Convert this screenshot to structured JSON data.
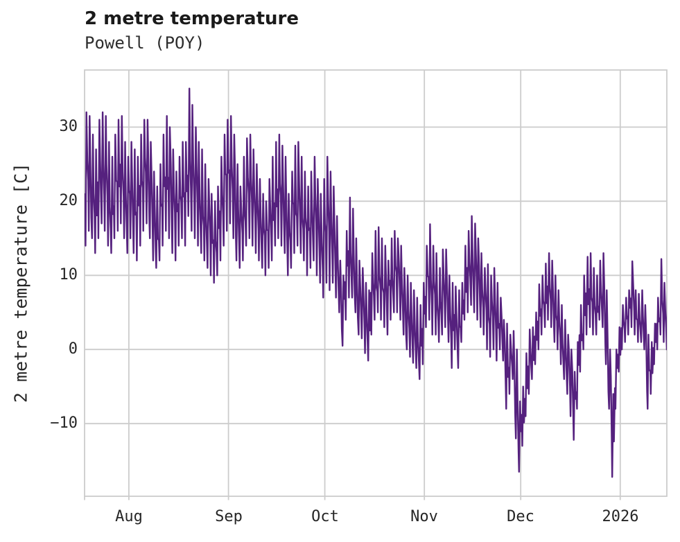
{
  "chart_data": {
    "type": "line",
    "title": "2 metre temperature",
    "subtitle": "Powell (POY)",
    "ylabel": "2 metre temperature [C]",
    "legend": "none",
    "grid": "on",
    "line_color": "#55217E",
    "grid_color": "#cccccc",
    "ylim": [
      -19.8,
      37.7
    ],
    "x_span_days": 181.3,
    "y_ticks": [
      {
        "label": "30",
        "value": 30
      },
      {
        "label": "20",
        "value": 20
      },
      {
        "label": "10",
        "value": 10
      },
      {
        "label": "0",
        "value": 0
      },
      {
        "label": "−10",
        "value": -10
      }
    ],
    "x_ticks": [
      {
        "label": "Aug",
        "day": 13.8
      },
      {
        "label": "Sep",
        "day": 44.8
      },
      {
        "label": "Oct",
        "day": 74.8
      },
      {
        "label": "Nov",
        "day": 105.8
      },
      {
        "label": "Dec",
        "day": 135.8
      },
      {
        "label": "2026",
        "day": 166.8
      }
    ],
    "daily_min_max_celsius": [
      [
        14,
        32
      ],
      [
        16,
        31.5
      ],
      [
        15,
        29
      ],
      [
        13,
        27
      ],
      [
        15,
        31
      ],
      [
        17,
        32
      ],
      [
        16,
        31.5
      ],
      [
        14,
        28
      ],
      [
        13,
        26
      ],
      [
        15,
        29
      ],
      [
        16,
        31
      ],
      [
        17,
        31.5
      ],
      [
        15,
        28
      ],
      [
        13,
        26
      ],
      [
        15,
        28
      ],
      [
        13,
        27
      ],
      [
        12,
        26
      ],
      [
        14,
        29
      ],
      [
        16,
        31
      ],
      [
        17,
        31
      ],
      [
        15,
        28
      ],
      [
        12,
        24
      ],
      [
        11,
        22
      ],
      [
        12,
        25
      ],
      [
        14,
        29
      ],
      [
        16,
        31.5
      ],
      [
        15,
        30
      ],
      [
        13,
        27
      ],
      [
        12,
        24
      ],
      [
        14,
        26
      ],
      [
        15,
        28
      ],
      [
        14,
        28
      ],
      [
        18,
        35.2
      ],
      [
        16,
        33
      ],
      [
        15,
        30
      ],
      [
        14,
        28
      ],
      [
        13,
        27
      ],
      [
        12,
        25
      ],
      [
        11,
        23
      ],
      [
        10,
        21
      ],
      [
        9,
        20
      ],
      [
        10,
        22
      ],
      [
        12,
        26
      ],
      [
        14,
        29
      ],
      [
        16,
        31
      ],
      [
        17,
        31.5
      ],
      [
        15,
        29
      ],
      [
        12,
        25
      ],
      [
        11,
        22
      ],
      [
        12,
        26
      ],
      [
        14,
        28.5
      ],
      [
        15,
        29
      ],
      [
        14,
        27
      ],
      [
        13,
        25
      ],
      [
        12,
        23
      ],
      [
        11,
        21
      ],
      [
        10,
        20
      ],
      [
        11,
        23
      ],
      [
        12,
        26
      ],
      [
        14,
        28
      ],
      [
        15,
        29
      ],
      [
        14,
        27.5
      ],
      [
        13,
        26
      ],
      [
        10,
        21
      ],
      [
        11,
        24
      ],
      [
        13,
        27.5
      ],
      [
        14,
        28
      ],
      [
        13,
        26
      ],
      [
        12,
        24
      ],
      [
        10,
        22
      ],
      [
        11,
        24
      ],
      [
        12,
        26
      ],
      [
        10,
        23
      ],
      [
        9,
        21
      ],
      [
        7,
        23
      ],
      [
        9,
        26
      ],
      [
        8,
        24
      ],
      [
        9,
        22
      ],
      [
        7,
        18
      ],
      [
        5,
        12
      ],
      [
        0.5,
        10
      ],
      [
        4,
        16
      ],
      [
        7,
        20.5
      ],
      [
        7,
        19
      ],
      [
        5,
        15
      ],
      [
        2,
        12
      ],
      [
        1.5,
        11
      ],
      [
        -0.5,
        9
      ],
      [
        -1.5,
        8
      ],
      [
        2,
        13
      ],
      [
        4,
        16
      ],
      [
        5,
        16.5
      ],
      [
        4,
        15
      ],
      [
        3,
        14
      ],
      [
        2,
        12
      ],
      [
        4,
        15
      ],
      [
        5,
        16
      ],
      [
        5,
        15
      ],
      [
        4,
        14
      ],
      [
        2,
        11
      ],
      [
        0,
        10
      ],
      [
        -1,
        9
      ],
      [
        -1.8,
        8
      ],
      [
        -2.5,
        7
      ],
      [
        -4,
        6
      ],
      [
        -2,
        9
      ],
      [
        3,
        14
      ],
      [
        4,
        16.9
      ],
      [
        2,
        14
      ],
      [
        2,
        13
      ],
      [
        1,
        11
      ],
      [
        2,
        13.5
      ],
      [
        3,
        13.5
      ],
      [
        1,
        10
      ],
      [
        -2.5,
        9
      ],
      [
        0,
        8.5
      ],
      [
        -2.5,
        8
      ],
      [
        1,
        9
      ],
      [
        4,
        14
      ],
      [
        5,
        16
      ],
      [
        6,
        18
      ],
      [
        5,
        17
      ],
      [
        4,
        15
      ],
      [
        3,
        13
      ],
      [
        2,
        11
      ],
      [
        0,
        11.5
      ],
      [
        -1,
        10
      ],
      [
        0,
        11
      ],
      [
        -1.5,
        9
      ],
      [
        0,
        7
      ],
      [
        -1.5,
        4
      ],
      [
        -8,
        3.5
      ],
      [
        -6,
        2
      ],
      [
        -4,
        2.5
      ],
      [
        -12,
        0
      ],
      [
        -16.5,
        -7
      ],
      [
        -13,
        -5
      ],
      [
        -9,
        -0.5
      ],
      [
        -6,
        2.7
      ],
      [
        -4,
        3
      ],
      [
        -2,
        5
      ],
      [
        0,
        8.8
      ],
      [
        2,
        10
      ],
      [
        3,
        11.6
      ],
      [
        4,
        13
      ],
      [
        3,
        12
      ],
      [
        1,
        10
      ],
      [
        0,
        8
      ],
      [
        -2,
        6
      ],
      [
        -4,
        4
      ],
      [
        -6,
        2
      ],
      [
        -9,
        0
      ],
      [
        -12.2,
        -3
      ],
      [
        -8,
        1
      ],
      [
        -3,
        6
      ],
      [
        0,
        10
      ],
      [
        2,
        12.5
      ],
      [
        3,
        13
      ],
      [
        2,
        11
      ],
      [
        2,
        10
      ],
      [
        4,
        12
      ],
      [
        3,
        13
      ],
      [
        -2,
        8
      ],
      [
        -8,
        0
      ],
      [
        -17.2,
        -6
      ],
      [
        -8,
        0
      ],
      [
        -3,
        3
      ],
      [
        0,
        6
      ],
      [
        1,
        7
      ],
      [
        2,
        8
      ],
      [
        3,
        11.9
      ],
      [
        2,
        8
      ],
      [
        1,
        7.5
      ],
      [
        1,
        8
      ],
      [
        0,
        6
      ],
      [
        -8,
        2
      ],
      [
        -6,
        1
      ],
      [
        -2,
        3.5
      ],
      [
        0,
        7
      ],
      [
        2,
        12.2
      ],
      [
        1,
        9
      ],
      [
        0,
        8
      ],
      [
        2,
        12
      ]
    ]
  }
}
